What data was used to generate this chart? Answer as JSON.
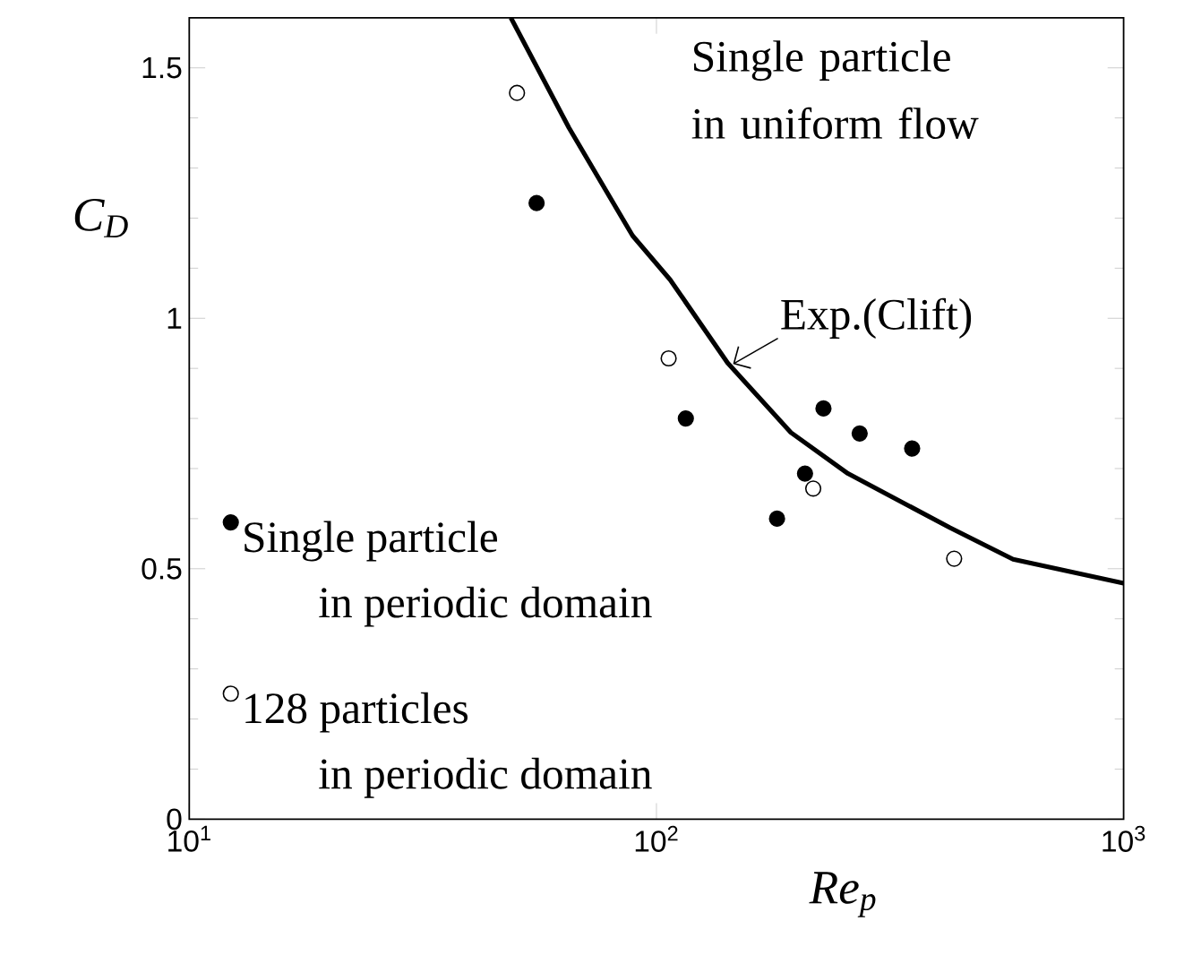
{
  "chart_data": {
    "type": "scatter",
    "xlabel": "Re$_{p}$",
    "ylabel": "C$_{D}$",
    "log": "x",
    "xlim": [
      10,
      1000
    ],
    "ylim": [
      0,
      1.6
    ],
    "xticks": [
      {
        "value": 10,
        "label": "10$^{1}$"
      },
      {
        "value": 100,
        "label": "10$^{2}$"
      },
      {
        "value": 1000,
        "label": "10$^{3}$"
      }
    ],
    "yticks": [
      0,
      0.5,
      1,
      1.5
    ],
    "legend": "bottom left",
    "marker": "circle",
    "grid": false,
    "annotations": [
      "Single particle in uniform flow"
    ],
    "series": [
      {
        "name": "Single particle in periodic domain",
        "color": "#000000",
        "x": [
          55.4,
          115.6,
          181.2,
          208,
          227.8,
          272.3,
          352.7
        ],
        "values": [
          1.23,
          0.8,
          0.6,
          0.69,
          0.82,
          0.77,
          0.74
        ]
      },
      {
        "name": "128 particles in periodic domain",
        "color": "#ffffff",
        "x": [
          50.3,
          106.2,
          216.6,
          433.8
        ],
        "values": [
          1.45,
          0.92,
          0.66,
          0.52
        ]
      },
      {
        "name": "Exp.(Clift)",
        "type": "line",
        "marker": "none",
        "line_style": "solid",
        "color": "#000000",
        "x": [
          48.8,
          65,
          88.9,
          107,
          142,
          194,
          257,
          425,
          580,
          1000
        ],
        "values": [
          1.6,
          1.38,
          1.165,
          1.077,
          0.911,
          0.772,
          0.69,
          0.582,
          0.519,
          0.471
        ]
      }
    ]
  }
}
